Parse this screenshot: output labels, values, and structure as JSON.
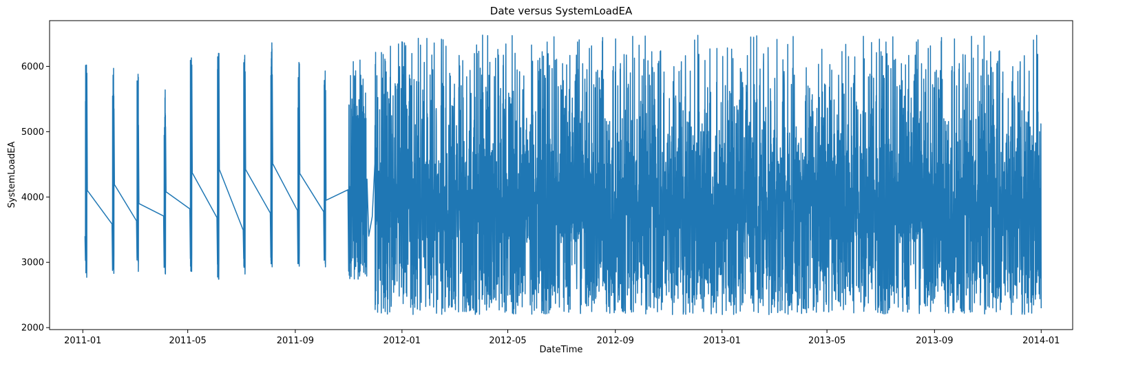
{
  "chart_data": {
    "type": "line",
    "title": "Date versus SystemLoadEA",
    "xlabel": "DateTime",
    "ylabel": "SystemLoadEA",
    "x_ticks": [
      "2011-01",
      "2011-05",
      "2011-09",
      "2012-01",
      "2012-05",
      "2012-09",
      "2013-01",
      "2013-05",
      "2013-09",
      "2014-01"
    ],
    "y_ticks": [
      2000,
      3000,
      4000,
      5000,
      6000
    ],
    "ylim": [
      1970,
      6700
    ],
    "xlim": [
      "2010-11-24",
      "2014-02-06"
    ],
    "grid": false,
    "legend": "none",
    "series_color": "#1f77b4",
    "series": [
      {
        "sparse_segment": {
          "description_points_x": [
            "2011-01-04",
            "2011-02-04",
            "2011-03-04",
            "2011-04-04",
            "2011-05-04",
            "2011-06-04",
            "2011-07-04",
            "2011-08-04",
            "2011-09-04",
            "2011-10-04"
          ],
          "spike_high": [
            6020,
            5970,
            5880,
            5640,
            6130,
            6200,
            6170,
            6360,
            6060,
            5930
          ],
          "spike_low": [
            2770,
            2830,
            2860,
            2820,
            2860,
            2740,
            2820,
            2930,
            2940,
            2930
          ],
          "after_value": [
            4100,
            4190,
            3900,
            4080,
            4370,
            4420,
            4420,
            4510,
            4360,
            3950
          ],
          "before_next": [
            3590,
            3640,
            3710,
            3820,
            3690,
            3500,
            3760,
            3800,
            3780,
            4110
          ]
        },
        "dense_segments": [
          {
            "start": "2011-11-01",
            "end": "2011-11-22",
            "low_range": [
              2740,
              3100
            ],
            "high_range": [
              5200,
              6100
            ]
          },
          {
            "start": "2011-12-01",
            "end": "2014-01-01",
            "low_range": [
              2200,
              3100
            ],
            "high_range": [
              4500,
              6480
            ]
          }
        ]
      }
    ]
  }
}
